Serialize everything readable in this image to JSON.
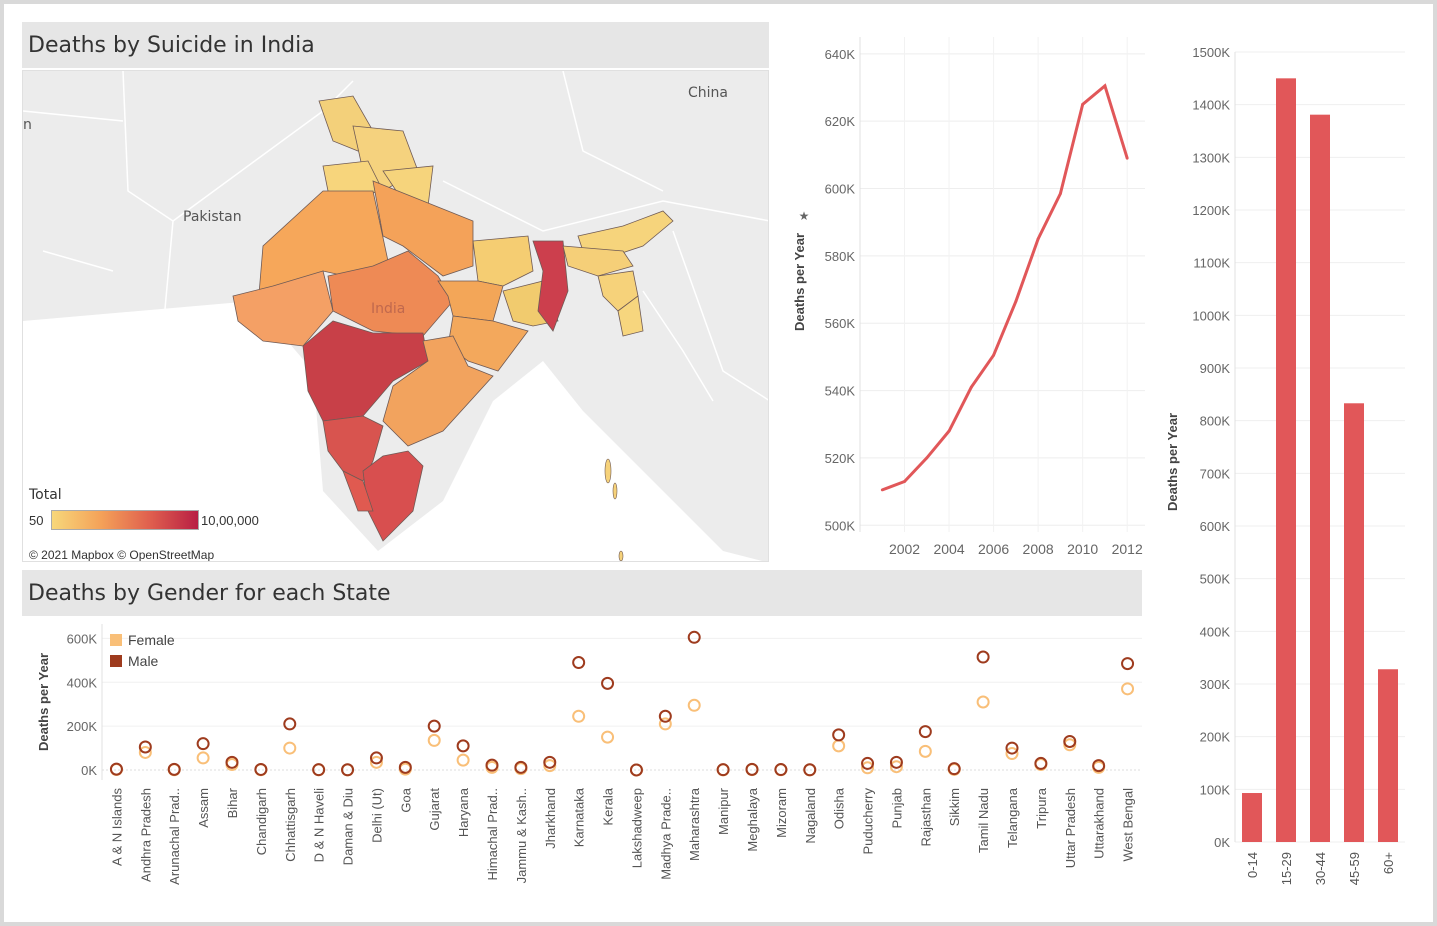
{
  "map_panel": {
    "title": "Deaths by Suicide in India",
    "labels": {
      "china": "China",
      "pakistan": "Pakistan",
      "india": "India",
      "left_edge": "n"
    },
    "legend": {
      "title": "Total",
      "min": "50",
      "max": "10,00,000"
    },
    "attribution": "© 2021 Mapbox © OpenStreetMap",
    "colors": {
      "low": "#f7d77a",
      "mid": "#f4a259",
      "high": "#b81f44"
    }
  },
  "gender_panel": {
    "title": "Deaths by Gender for each State",
    "legend": [
      {
        "label": "Female",
        "color": "#f9bf78"
      },
      {
        "label": "Male",
        "color": "#9e3b1e"
      }
    ]
  },
  "chart_data": [
    {
      "id": "trend",
      "type": "line",
      "ylabel": "Deaths per Year",
      "x": [
        2001,
        2002,
        2003,
        2004,
        2005,
        2006,
        2007,
        2008,
        2009,
        2010,
        2011,
        2012
      ],
      "values": [
        510500,
        513000,
        520000,
        528000,
        541000,
        550500,
        566500,
        585000,
        598500,
        625000,
        630500,
        609000
      ],
      "xticks": [
        2002,
        2004,
        2006,
        2008,
        2010,
        2012
      ],
      "yticks": [
        500000,
        520000,
        540000,
        560000,
        580000,
        600000,
        620000,
        640000
      ],
      "ytick_labels": [
        "500K",
        "520K",
        "540K",
        "560K",
        "580K",
        "600K",
        "620K",
        "640K"
      ],
      "xlim": [
        2000.0,
        2012.8
      ],
      "ylim": [
        498000,
        645000
      ],
      "color": "#e15759",
      "grid": true
    },
    {
      "id": "age",
      "type": "bar",
      "ylabel": "Deaths per Year",
      "categories": [
        "0-14",
        "15-29",
        "30-44",
        "45-59",
        "60+"
      ],
      "values": [
        93000,
        1450000,
        1381000,
        833000,
        328000
      ],
      "yticks": [
        0,
        100000,
        200000,
        300000,
        400000,
        500000,
        600000,
        700000,
        800000,
        900000,
        1000000,
        1100000,
        1200000,
        1300000,
        1400000,
        1500000
      ],
      "ytick_labels": [
        "0K",
        "100K",
        "200K",
        "300K",
        "400K",
        "500K",
        "600K",
        "700K",
        "800K",
        "900K",
        "1000K",
        "1100K",
        "1200K",
        "1300K",
        "1400K",
        "1500K"
      ],
      "ylim": [
        0,
        1500000
      ],
      "color": "#e15759",
      "grid": true
    },
    {
      "id": "gender",
      "type": "scatter",
      "ylabel": "Deaths per Year",
      "categories": [
        "A & N Islands",
        "Andhra Pradesh",
        "Arunachal Prad..",
        "Assam",
        "Bihar",
        "Chandigarh",
        "Chhattisgarh",
        "D & N Haveli",
        "Daman & Diu",
        "Delhi (Ut)",
        "Goa",
        "Gujarat",
        "Haryana",
        "Himachal Prad..",
        "Jammu & Kash..",
        "Jharkhand",
        "Karnataka",
        "Kerala",
        "Lakshadweep",
        "Madhya Prade..",
        "Maharashtra",
        "Manipur",
        "Meghalaya",
        "Mizoram",
        "Nagaland",
        "Odisha",
        "Puducherry",
        "Punjab",
        "Rajasthan",
        "Sikkim",
        "Tamil Nadu",
        "Telangana",
        "Tripura",
        "Uttar Pradesh",
        "Uttarakhand",
        "West Bengal"
      ],
      "series": [
        {
          "name": "Female",
          "color": "#f9bf78",
          "values": [
            2000,
            80000,
            1000,
            55000,
            25000,
            1000,
            100000,
            800,
            500,
            35000,
            4000,
            135000,
            45000,
            12000,
            6000,
            20000,
            245000,
            150000,
            50,
            210000,
            295000,
            600,
            1500,
            1000,
            400,
            110000,
            10000,
            15000,
            85000,
            2500,
            310000,
            75000,
            25000,
            115000,
            12000,
            370000
          ]
        },
        {
          "name": "Male",
          "color": "#9e3b1e",
          "values": [
            4000,
            105000,
            3000,
            120000,
            35000,
            2500,
            210000,
            1500,
            1000,
            55000,
            12000,
            200000,
            110000,
            22000,
            12000,
            35000,
            490000,
            395000,
            200,
            245000,
            605000,
            1500,
            3000,
            2000,
            1000,
            160000,
            30000,
            35000,
            175000,
            6000,
            515000,
            100000,
            30000,
            130000,
            20000,
            485000
          ]
        }
      ],
      "yticks": [
        0,
        200000,
        400000,
        600000
      ],
      "ytick_labels": [
        "0K",
        "200K",
        "400K",
        "600K"
      ],
      "ylim": [
        0,
        620000
      ],
      "grid": true
    }
  ]
}
